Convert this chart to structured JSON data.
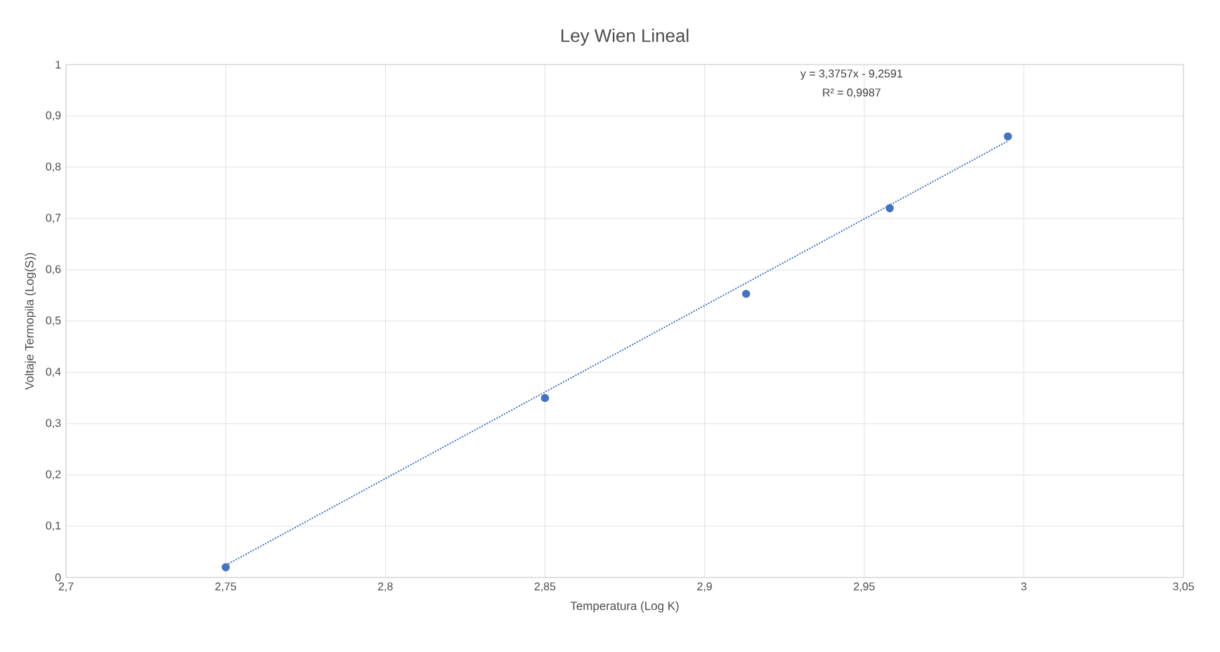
{
  "chart_data": {
    "type": "scatter",
    "title": "Ley Wien Lineal",
    "xlabel": "Temperatura (Log K)",
    "ylabel": "Voltaje Termopila (Log(S))",
    "series": [
      {
        "color": "#4472c4",
        "marker": "circle",
        "x": [
          2.75,
          2.85,
          2.913,
          2.958,
          2.995
        ],
        "values": [
          0.02,
          0.35,
          0.553,
          0.72,
          0.86
        ]
      },
      {
        "type": "line",
        "color": "#4472c4",
        "line_style": "dotted",
        "marker": "none",
        "x": [
          2.75,
          2.995
        ],
        "values": [
          0.024,
          0.851
        ]
      }
    ],
    "annotations": [
      "y = 3,3757x - 9,2591",
      "R² = 0,9987"
    ],
    "xlim": [
      2.7,
      3.05
    ],
    "ylim": [
      0,
      1
    ],
    "xticks": [
      {
        "value": 2.7,
        "label": "2,7"
      },
      {
        "value": 2.75,
        "label": "2,75"
      },
      {
        "value": 2.8,
        "label": "2,8"
      },
      {
        "value": 2.85,
        "label": "2,85"
      },
      {
        "value": 2.9,
        "label": "2,9"
      },
      {
        "value": 2.95,
        "label": "2,95"
      },
      {
        "value": 3,
        "label": "3"
      },
      {
        "value": 3.05,
        "label": "3,05"
      }
    ],
    "yticks": [
      0,
      {
        "value": 0.1,
        "label": "0,1"
      },
      {
        "value": 0.2,
        "label": "0,2"
      },
      {
        "value": 0.3,
        "label": "0,3"
      },
      {
        "value": 0.4,
        "label": "0,4"
      },
      {
        "value": 0.5,
        "label": "0,5"
      },
      {
        "value": 0.6,
        "label": "0,6"
      },
      {
        "value": 0.7,
        "label": "0,7"
      },
      {
        "value": 0.8,
        "label": "0,8"
      },
      {
        "value": 0.9,
        "label": "0,9"
      },
      1
    ],
    "grid": true
  }
}
